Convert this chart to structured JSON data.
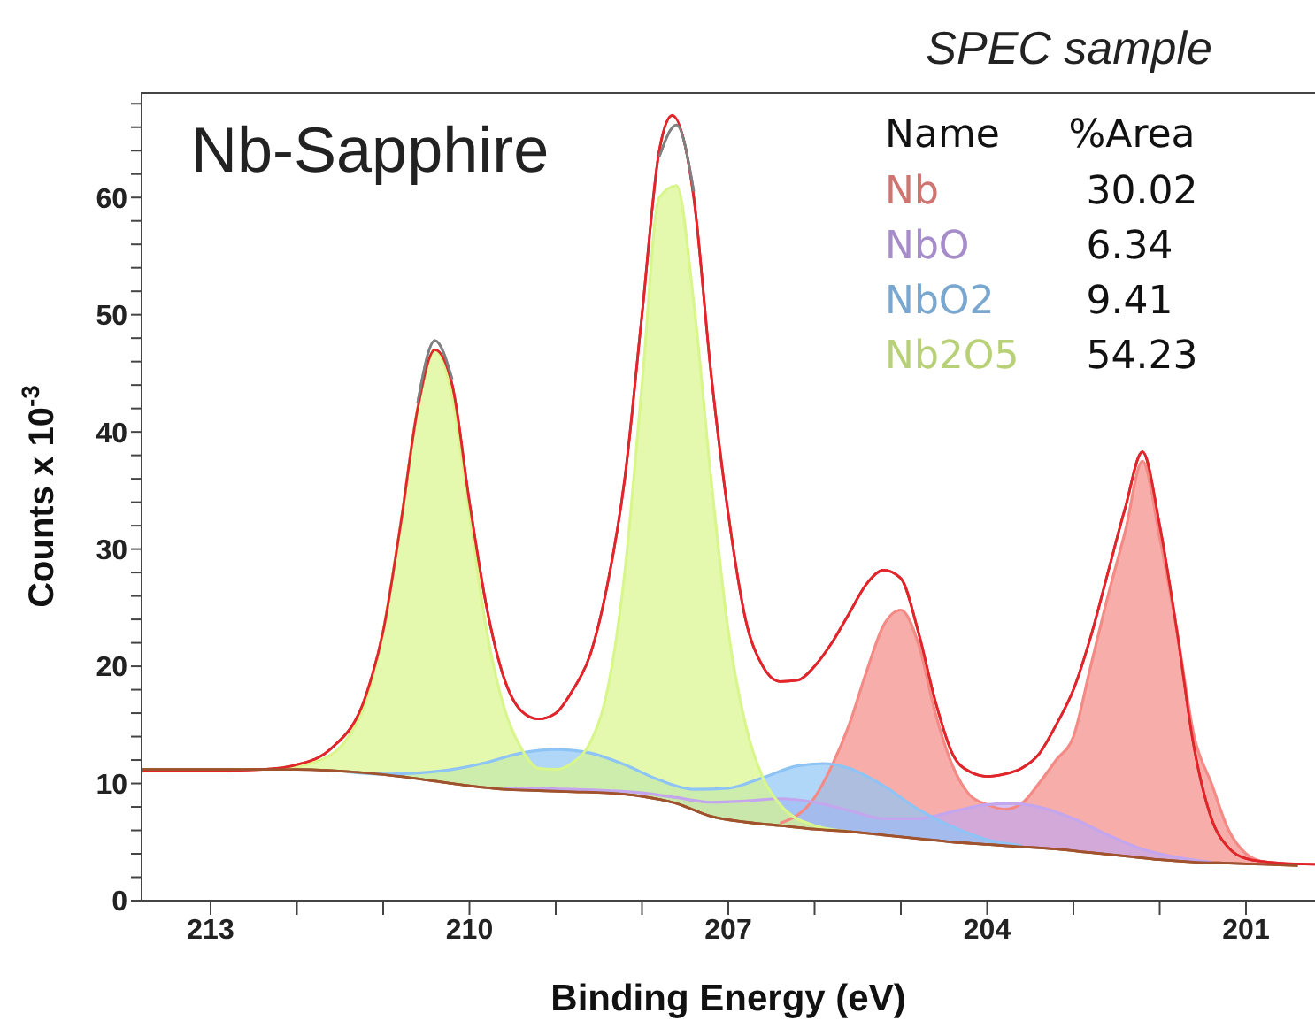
{
  "chart_data": {
    "type": "line",
    "title": "SPEC sample",
    "subtitle": "Nb-Sapphire",
    "xlabel": "Binding Energy (eV)",
    "ylabel": "Counts x 10$^{-3}$",
    "legend_title": "Name",
    "legend": "top right",
    "annotations": [
      "%Area",
      "30.02",
      "6.34",
      "9.41",
      "54.23"
    ],
    "xlim": [
      213.8,
      200.2
    ],
    "xticks": [
      213,
      {
        "value": 212,
        "label": null
      },
      {
        "value": 211,
        "label": null
      },
      210,
      {
        "value": 209,
        "label": null
      },
      {
        "value": 208,
        "label": null
      },
      207,
      {
        "value": 206,
        "label": null
      },
      {
        "value": 205,
        "label": null
      },
      204,
      {
        "value": 203,
        "label": null
      },
      {
        "value": 202,
        "label": null
      },
      201
    ],
    "ylim": [
      0,
      69
    ],
    "yticks": [
      0,
      {
        "value": 2,
        "label": null
      },
      {
        "value": 4,
        "label": null
      },
      {
        "value": 6,
        "label": null
      },
      {
        "value": 8,
        "label": null
      },
      10,
      {
        "value": 12,
        "label": null
      },
      {
        "value": 14,
        "label": null
      },
      {
        "value": 16,
        "label": null
      },
      {
        "value": 18,
        "label": null
      },
      20,
      {
        "value": 22,
        "label": null
      },
      {
        "value": 24,
        "label": null
      },
      {
        "value": 26,
        "label": null
      },
      {
        "value": 28,
        "label": null
      },
      30,
      {
        "value": 32,
        "label": null
      },
      {
        "value": 34,
        "label": null
      },
      {
        "value": 36,
        "label": null
      },
      {
        "value": 38,
        "label": null
      },
      40,
      {
        "value": 42,
        "label": null
      },
      {
        "value": 44,
        "label": null
      },
      {
        "value": 46,
        "label": null
      },
      {
        "value": 48,
        "label": null
      },
      50,
      {
        "value": 52,
        "label": null
      },
      {
        "value": 54,
        "label": null
      },
      {
        "value": 56,
        "label": null
      },
      {
        "value": 58,
        "label": null
      },
      60,
      {
        "value": 62,
        "label": null
      },
      {
        "value": 64,
        "label": null
      },
      {
        "value": 66,
        "label": null
      },
      {
        "value": 68,
        "label": null
      }
    ],
    "series": [
      {
        "color": "#a0522d",
        "x": [
          213.8,
          212,
          211.6,
          211.2,
          210.8,
          210.4,
          210,
          209.6,
          209.2,
          208.8,
          208.4,
          208,
          207.6,
          207.2,
          206.8,
          206.4,
          206,
          205.6,
          205.2,
          204.8,
          204.4,
          204,
          203.6,
          203.2,
          202.8,
          202.4,
          202,
          201.6,
          201.2,
          200.8,
          200.4
        ],
        "values": [
          11.2,
          11.2,
          11.1,
          10.9,
          10.6,
          10.2,
          9.8,
          9.5,
          9.4,
          9.3,
          9.2,
          8.9,
          8.3,
          7.2,
          6.7,
          6.4,
          6.1,
          5.9,
          5.6,
          5.3,
          5,
          4.8,
          4.6,
          4.4,
          4.1,
          3.8,
          3.5,
          3.3,
          3.2,
          3.1,
          3
        ]
      },
      {
        "type": "area",
        "name": "Nb",
        "color": "#f48a85",
        "x": [
          206.4,
          206,
          205.8,
          205.6,
          205.4,
          205.2,
          205,
          204.8,
          204.6,
          204.4,
          204.2,
          204,
          203.8,
          203.6,
          203.4,
          203.2,
          203,
          202.8,
          202.6,
          202.4,
          202.2,
          202,
          201.8,
          201.6,
          201.4,
          201.2,
          201,
          200.8
        ],
        "values": [
          6.6,
          8.8,
          11.5,
          15,
          19.5,
          23.5,
          24.8,
          22,
          16,
          11.5,
          9,
          8.2,
          7.8,
          8.3,
          10,
          12,
          14,
          20,
          26,
          31.5,
          37.5,
          31,
          23,
          14,
          10,
          6,
          4,
          3.3
        ]
      },
      {
        "type": "area",
        "name": "NbO",
        "color": "#c3a6ee",
        "x": [
          209.6,
          208.8,
          208,
          207.6,
          207.2,
          206.8,
          206.4,
          206,
          205.6,
          205.2,
          204.8,
          204.4,
          204,
          203.7,
          203.4,
          203,
          202.6,
          202.2,
          201.8,
          201.4
        ],
        "values": [
          9.6,
          9.5,
          9.2,
          8.8,
          8.4,
          8.5,
          8.7,
          8.4,
          7.7,
          7,
          7,
          7.6,
          8.2,
          8.3,
          8,
          7,
          5.6,
          4.4,
          3.7,
          3.3
        ]
      },
      {
        "type": "area",
        "name": "NbO2",
        "color": "#8ec4f5",
        "x": [
          211.4,
          211,
          210.6,
          210.2,
          209.8,
          209.4,
          209,
          208.6,
          208.2,
          207.8,
          207.4,
          207,
          206.6,
          206.2,
          205.9,
          205.6,
          205.2,
          204.8,
          204.4,
          204,
          203.6
        ],
        "values": [
          11,
          10.8,
          10.9,
          11.2,
          11.8,
          12.6,
          12.9,
          12.6,
          11.6,
          10.3,
          9.5,
          9.6,
          10.5,
          11.5,
          11.7,
          11.3,
          9.8,
          7.8,
          6.3,
          5.2,
          4.7
        ]
      },
      {
        "type": "area",
        "name": "Nb2O5",
        "color": "#d8f68c",
        "x": [
          212.2,
          211.8,
          211.4,
          211.2,
          211,
          210.8,
          210.6,
          210.4,
          210.2,
          210,
          209.8,
          209.6,
          209.4,
          209.2,
          209,
          208.8,
          208.6,
          208.4,
          208.2,
          208,
          207.8,
          207.6,
          207.4,
          207.2,
          207,
          206.8,
          206.6,
          206.4,
          206,
          205.6
        ],
        "values": [
          11.3,
          11.8,
          14,
          17,
          23,
          32,
          42,
          47,
          43,
          33,
          23,
          16.5,
          13,
          11.3,
          11.2,
          11.8,
          13.5,
          18,
          28,
          44,
          60,
          61,
          51,
          36,
          23,
          15,
          10.5,
          8.2,
          6.4,
          5.9
        ]
      },
      {
        "color": "#808080",
        "x": [
          210.6,
          210.4,
          210.2,
          209,
          207.8,
          207.6,
          207.4
        ],
        "values": [
          42.5,
          47.8,
          44.5,
          null,
          63.5,
          66.2,
          60.5
        ]
      },
      {
        "color": "#e0262b",
        "x": [
          213.8,
          213,
          212.4,
          212,
          211.6,
          211.2,
          211,
          210.8,
          210.6,
          210.4,
          210.2,
          210,
          209.8,
          209.6,
          209.4,
          209.2,
          209,
          208.8,
          208.6,
          208.4,
          208.2,
          208,
          207.8,
          207.65,
          207.4,
          207.2,
          207,
          206.8,
          206.6,
          206.4,
          206.2,
          206,
          205.8,
          205.6,
          205.4,
          205.2,
          205,
          204.8,
          204.6,
          204.4,
          204.2,
          204,
          203.8,
          203.6,
          203.4,
          203.2,
          203,
          202.8,
          202.6,
          202.4,
          202.2,
          202,
          201.8,
          201.6,
          201.4,
          201.2,
          201,
          200.6,
          200.2
        ],
        "values": [
          11.1,
          11.1,
          11.2,
          11.6,
          13,
          17.5,
          23,
          32,
          42,
          47,
          44,
          34,
          25,
          19,
          16.2,
          15.5,
          16,
          18,
          21,
          27,
          36,
          50,
          64,
          67,
          60,
          45,
          33,
          24,
          20,
          18.7,
          18.8,
          20,
          22,
          24.5,
          27,
          28.2,
          27.5,
          23,
          17,
          12.5,
          11,
          10.6,
          10.8,
          11.3,
          12.5,
          15,
          18,
          22.5,
          28,
          33.5,
          38.3,
          32,
          23,
          13,
          7,
          4.5,
          3.6,
          3.2,
          3.1
        ]
      }
    ]
  }
}
